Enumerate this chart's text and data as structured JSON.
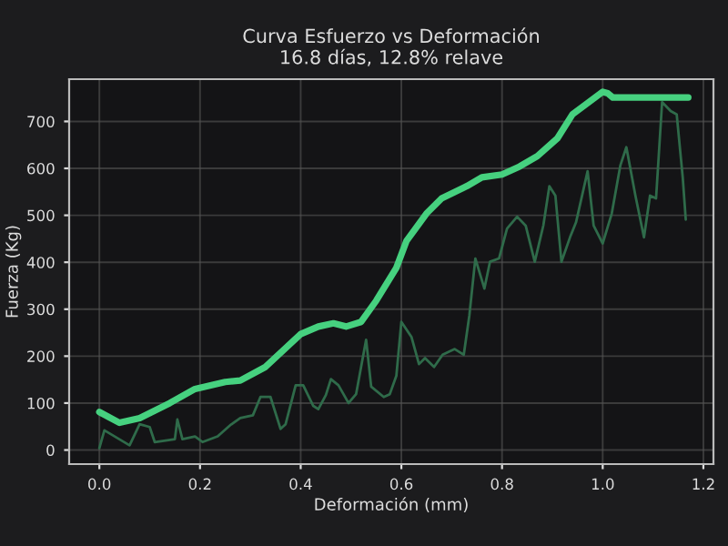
{
  "chart_data": {
    "type": "line",
    "title": "Curva Esfuerzo vs Deformación\n16.8 días, 12.8% relave",
    "xlabel": "Deformación (mm)",
    "ylabel": "Fuerza (Kg)",
    "xlim": [
      -0.06,
      1.22
    ],
    "ylim": [
      -30,
      790
    ],
    "xticks": [
      {
        "value": 0,
        "label": "0.0"
      },
      {
        "value": 0.2,
        "label": "0.2"
      },
      {
        "value": 0.4,
        "label": "0.4"
      },
      {
        "value": 0.6,
        "label": "0.6"
      },
      {
        "value": 0.8,
        "label": "0.8"
      },
      {
        "value": 1.0,
        "label": "1.0"
      },
      {
        "value": 1.2,
        "label": "1.2"
      }
    ],
    "yticks": [
      0,
      100,
      200,
      300,
      400,
      500,
      600,
      700
    ],
    "grid": true,
    "series": [
      {
        "color": "#2f6b4a",
        "x": [
          0,
          0.01,
          0.06,
          0.08,
          0.1,
          0.11,
          0.15,
          0.155,
          0.165,
          0.19,
          0.205,
          0.235,
          0.26,
          0.28,
          0.305,
          0.32,
          0.34,
          0.36,
          0.37,
          0.39,
          0.405,
          0.425,
          0.435,
          0.45,
          0.46,
          0.475,
          0.495,
          0.51,
          0.53,
          0.54,
          0.565,
          0.577,
          0.59,
          0.6,
          0.62,
          0.635,
          0.647,
          0.665,
          0.682,
          0.706,
          0.724,
          0.735,
          0.747,
          0.765,
          0.776,
          0.794,
          0.81,
          0.83,
          0.847,
          0.865,
          0.882,
          0.894,
          0.906,
          0.918,
          0.935,
          0.947,
          0.97,
          0.982,
          1.0,
          1.018,
          1.035,
          1.047,
          1.065,
          1.082,
          1.094,
          1.106,
          1.118,
          1.135,
          1.147,
          1.159,
          1.165
        ],
        "values": [
          4,
          42,
          10,
          55,
          49,
          17,
          23,
          65,
          23,
          29,
          17,
          29,
          53,
          68,
          74,
          113,
          113,
          45,
          55,
          138,
          138,
          94,
          87,
          117,
          151,
          138,
          100,
          119,
          235,
          135,
          113,
          119,
          158,
          273,
          241,
          183,
          196,
          177,
          203,
          215,
          203,
          286,
          408,
          344,
          401,
          408,
          472,
          497,
          478,
          401,
          478,
          562,
          542,
          401,
          453,
          485,
          594,
          478,
          440,
          504,
          606,
          645,
          542,
          453,
          542,
          536,
          741,
          722,
          715,
          581,
          491
        ]
      },
      {
        "color": "#46d17f",
        "x": [
          0,
          0.04,
          0.08,
          0.14,
          0.19,
          0.25,
          0.28,
          0.33,
          0.4,
          0.435,
          0.465,
          0.49,
          0.52,
          0.55,
          0.59,
          0.61,
          0.65,
          0.68,
          0.73,
          0.76,
          0.8,
          0.835,
          0.87,
          0.91,
          0.94,
          1.0,
          1.01,
          1.02,
          1.17
        ],
        "values": [
          81,
          58,
          68,
          100,
          130,
          145,
          148,
          177,
          247,
          263,
          270,
          263,
          273,
          318,
          388,
          445,
          504,
          536,
          562,
          581,
          587,
          604,
          626,
          664,
          715,
          763,
          760,
          751,
          751
        ]
      }
    ]
  }
}
